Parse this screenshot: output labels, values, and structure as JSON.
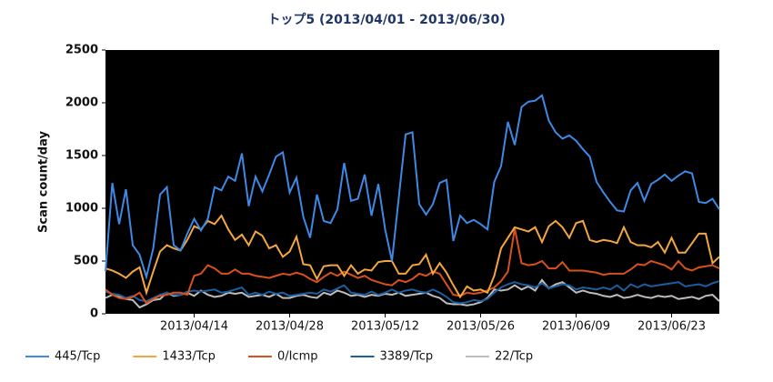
{
  "chart_data": {
    "type": "line",
    "title": "トップ5  (2013/04/01  -  2013/06/30)",
    "y_label": "Scan count/day",
    "x": [
      "2013/04/01",
      "2013/04/02",
      "2013/04/03",
      "2013/04/04",
      "2013/04/05",
      "2013/04/06",
      "2013/04/07",
      "2013/04/08",
      "2013/04/09",
      "2013/04/10",
      "2013/04/11",
      "2013/04/12",
      "2013/04/13",
      "2013/04/14",
      "2013/04/15",
      "2013/04/16",
      "2013/04/17",
      "2013/04/18",
      "2013/04/19",
      "2013/04/20",
      "2013/04/21",
      "2013/04/22",
      "2013/04/23",
      "2013/04/24",
      "2013/04/25",
      "2013/04/26",
      "2013/04/27",
      "2013/04/28",
      "2013/04/29",
      "2013/04/30",
      "2013/05/01",
      "2013/05/02",
      "2013/05/03",
      "2013/05/04",
      "2013/05/05",
      "2013/05/06",
      "2013/05/07",
      "2013/05/08",
      "2013/05/09",
      "2013/05/10",
      "2013/05/11",
      "2013/05/12",
      "2013/05/13",
      "2013/05/14",
      "2013/05/15",
      "2013/05/16",
      "2013/05/17",
      "2013/05/18",
      "2013/05/19",
      "2013/05/20",
      "2013/05/21",
      "2013/05/22",
      "2013/05/23",
      "2013/05/24",
      "2013/05/25",
      "2013/05/26",
      "2013/05/27",
      "2013/05/28",
      "2013/05/29",
      "2013/05/30",
      "2013/05/31",
      "2013/06/01",
      "2013/06/02",
      "2013/06/03",
      "2013/06/04",
      "2013/06/05",
      "2013/06/06",
      "2013/06/07",
      "2013/06/08",
      "2013/06/09",
      "2013/06/10",
      "2013/06/11",
      "2013/06/12",
      "2013/06/13",
      "2013/06/14",
      "2013/06/15",
      "2013/06/16",
      "2013/06/17",
      "2013/06/18",
      "2013/06/19",
      "2013/06/20",
      "2013/06/21",
      "2013/06/22",
      "2013/06/23",
      "2013/06/24",
      "2013/06/25",
      "2013/06/26",
      "2013/06/27",
      "2013/06/28",
      "2013/06/29",
      "2013/06/30"
    ],
    "xticks": [
      "2013/04/14",
      "2013/04/28",
      "2013/05/12",
      "2013/05/26",
      "2013/06/09",
      "2013/06/23"
    ],
    "ylim": [
      0,
      2500
    ],
    "yticks": [
      0,
      500,
      1000,
      1500,
      2000,
      2500
    ],
    "series": [
      {
        "name": "445/Tcp",
        "color": "#3f88e3",
        "values": [
          400,
          1240,
          850,
          1180,
          650,
          560,
          350,
          620,
          1130,
          1200,
          650,
          600,
          760,
          900,
          790,
          900,
          1200,
          1170,
          1300,
          1260,
          1520,
          1020,
          1300,
          1160,
          1320,
          1490,
          1530,
          1150,
          1290,
          920,
          720,
          1130,
          880,
          860,
          990,
          1430,
          1070,
          1090,
          1320,
          930,
          1230,
          800,
          500,
          1100,
          1700,
          1720,
          1040,
          940,
          1040,
          1240,
          1270,
          690,
          930,
          860,
          890,
          850,
          800,
          1250,
          1400,
          1820,
          1600,
          1960,
          2010,
          2020,
          2070,
          1830,
          1720,
          1660,
          1690,
          1640,
          1560,
          1490,
          1250,
          1150,
          1060,
          980,
          970,
          1170,
          1240,
          1070,
          1230,
          1270,
          1320,
          1260,
          1310,
          1350,
          1330,
          1060,
          1050,
          1090,
          990
        ]
      },
      {
        "name": "1433/Tcp",
        "color": "#f4a640",
        "values": [
          430,
          410,
          380,
          340,
          400,
          440,
          200,
          400,
          590,
          650,
          620,
          600,
          700,
          830,
          800,
          880,
          850,
          930,
          800,
          700,
          750,
          650,
          780,
          740,
          620,
          650,
          540,
          590,
          730,
          470,
          460,
          330,
          450,
          460,
          460,
          360,
          460,
          380,
          420,
          410,
          490,
          500,
          500,
          380,
          380,
          460,
          470,
          560,
          380,
          480,
          390,
          270,
          160,
          260,
          220,
          230,
          200,
          360,
          620,
          720,
          820,
          800,
          780,
          820,
          680,
          830,
          880,
          820,
          720,
          860,
          880,
          700,
          680,
          700,
          690,
          670,
          820,
          680,
          650,
          650,
          630,
          680,
          580,
          720,
          580,
          580,
          670,
          760,
          760,
          480,
          540
        ]
      },
      {
        "name": "0/Icmp",
        "color": "#d8501c",
        "values": [
          230,
          180,
          150,
          140,
          160,
          200,
          100,
          140,
          170,
          180,
          200,
          200,
          180,
          360,
          380,
          460,
          430,
          380,
          380,
          420,
          380,
          380,
          360,
          350,
          340,
          360,
          380,
          370,
          390,
          370,
          330,
          300,
          350,
          390,
          360,
          400,
          370,
          340,
          360,
          320,
          300,
          280,
          270,
          320,
          300,
          330,
          380,
          360,
          400,
          380,
          280,
          180,
          170,
          200,
          190,
          200,
          220,
          250,
          310,
          400,
          810,
          480,
          460,
          470,
          500,
          430,
          430,
          490,
          410,
          410,
          410,
          400,
          390,
          370,
          380,
          380,
          380,
          420,
          470,
          460,
          500,
          480,
          460,
          420,
          500,
          430,
          410,
          440,
          450,
          460,
          430
        ]
      },
      {
        "name": "3389/Tcp",
        "color": "#1d5e9e",
        "values": [
          210,
          190,
          180,
          150,
          170,
          130,
          120,
          150,
          180,
          200,
          180,
          180,
          210,
          220,
          210,
          220,
          230,
          200,
          210,
          230,
          250,
          180,
          200,
          180,
          210,
          190,
          200,
          170,
          180,
          190,
          200,
          190,
          230,
          210,
          240,
          270,
          200,
          190,
          180,
          210,
          180,
          200,
          230,
          200,
          220,
          230,
          210,
          200,
          230,
          200,
          160,
          110,
          100,
          110,
          130,
          120,
          140,
          200,
          250,
          280,
          300,
          280,
          270,
          250,
          290,
          240,
          260,
          280,
          270,
          230,
          250,
          240,
          230,
          250,
          230,
          270,
          220,
          280,
          250,
          280,
          260,
          270,
          280,
          290,
          300,
          260,
          270,
          280,
          260,
          290,
          310
        ]
      },
      {
        "name": "22/Tcp",
        "color": "#bdbdbd",
        "values": [
          150,
          180,
          160,
          140,
          130,
          60,
          90,
          130,
          140,
          200,
          170,
          180,
          200,
          170,
          220,
          180,
          160,
          170,
          200,
          190,
          200,
          160,
          170,
          180,
          160,
          190,
          150,
          150,
          170,
          180,
          160,
          150,
          200,
          180,
          220,
          200,
          170,
          180,
          160,
          180,
          170,
          190,
          180,
          200,
          170,
          180,
          190,
          200,
          170,
          150,
          100,
          90,
          90,
          80,
          90,
          110,
          150,
          230,
          220,
          230,
          270,
          230,
          260,
          220,
          320,
          240,
          280,
          300,
          250,
          200,
          220,
          200,
          190,
          170,
          160,
          180,
          150,
          160,
          180,
          160,
          150,
          170,
          160,
          170,
          140,
          150,
          160,
          140,
          170,
          180,
          120
        ]
      }
    ]
  }
}
